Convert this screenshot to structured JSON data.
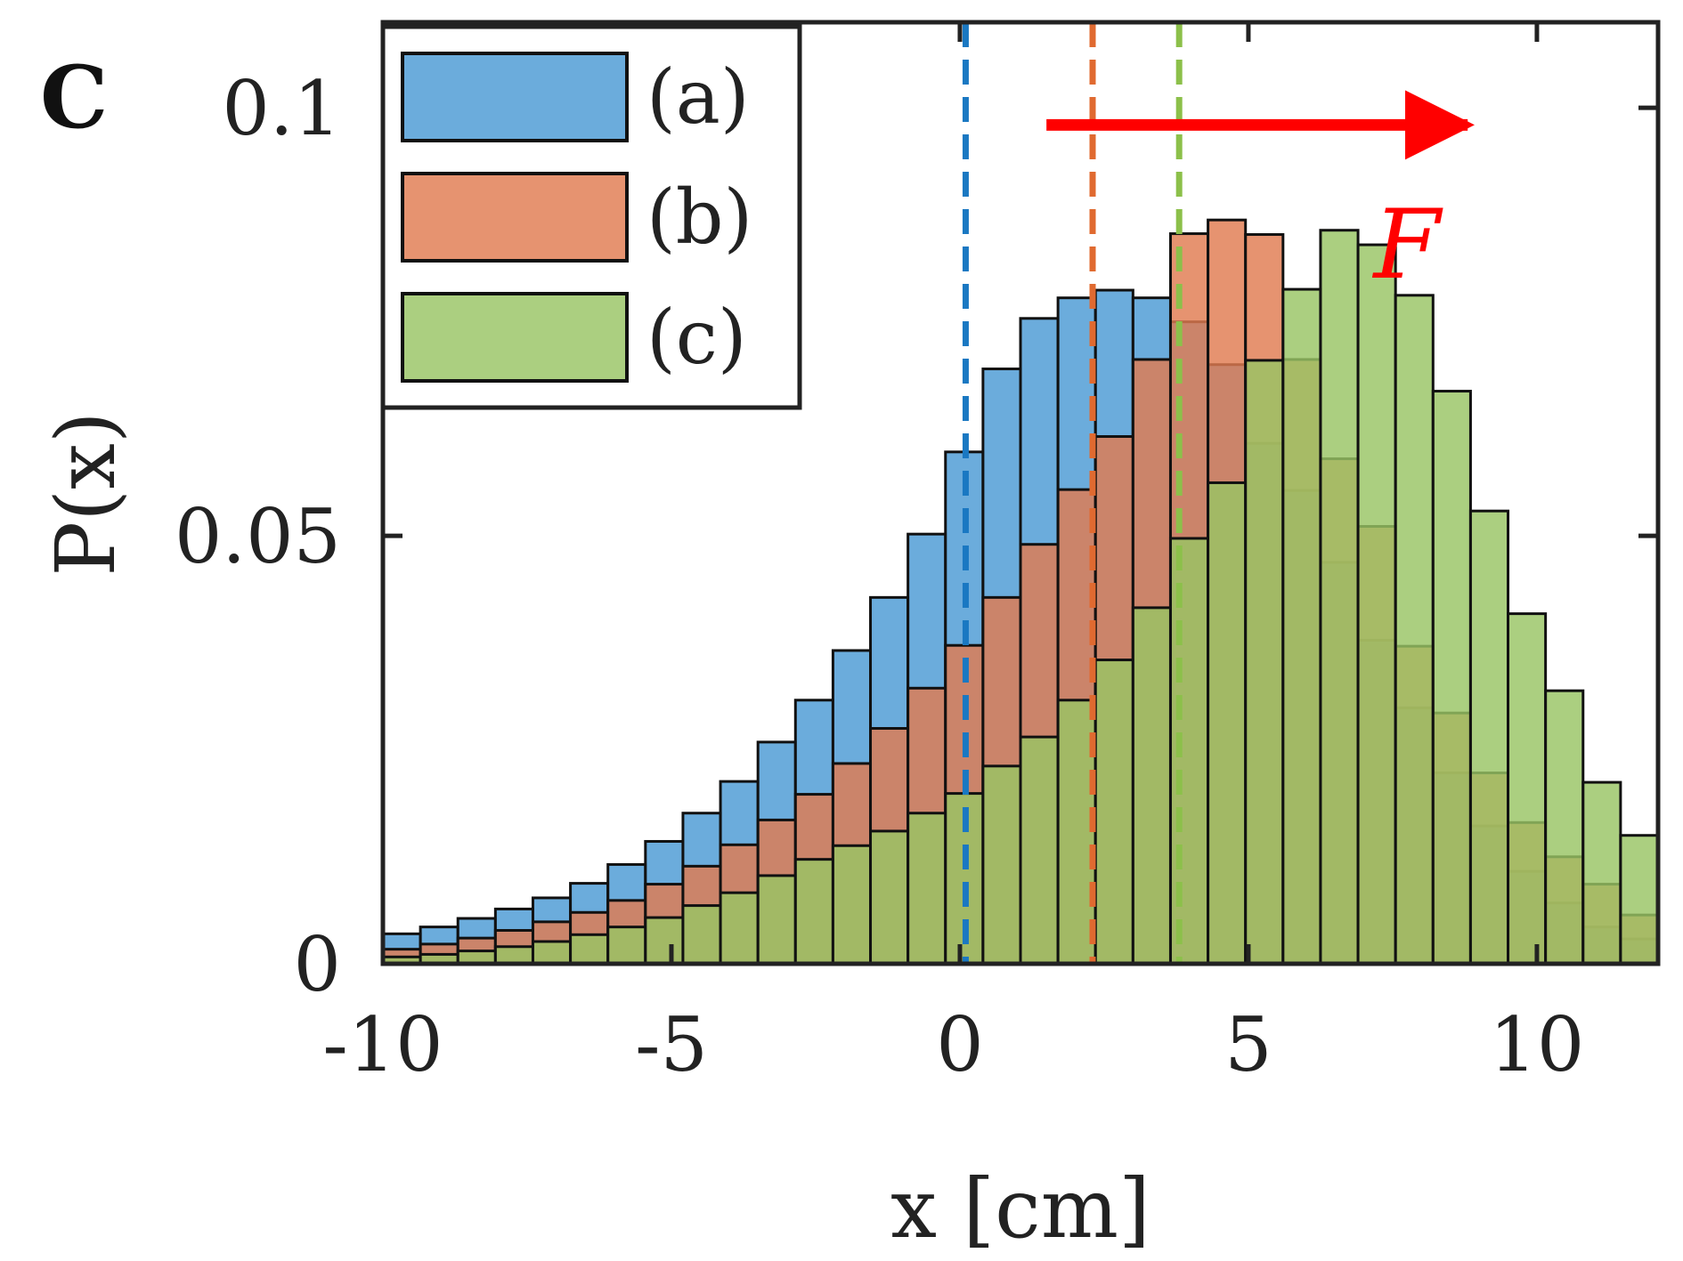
{
  "panel": {
    "letter": "C"
  },
  "chart_data": {
    "type": "bar",
    "title": "",
    "xlabel": "x [cm]",
    "ylabel": "P(x)",
    "xlim": [
      -10,
      12.1
    ],
    "ylim": [
      0,
      0.11
    ],
    "xticks": [
      -10,
      -5,
      0,
      5,
      10
    ],
    "xtick_labels": [
      "-10",
      "-5",
      "0",
      "5",
      "10"
    ],
    "yticks": [
      0,
      0.05,
      0.1
    ],
    "ytick_labels": [
      "0",
      "0.05",
      "0.1"
    ],
    "bin_width": 0.65,
    "bin_left_edges": [
      -10.0,
      -9.35,
      -8.7,
      -8.05,
      -7.4,
      -6.75,
      -6.1,
      -5.45,
      -4.8,
      -4.15,
      -3.5,
      -2.85,
      -2.2,
      -1.55,
      -0.9,
      -0.25,
      0.4,
      1.05,
      1.7,
      2.35,
      3.0,
      3.65,
      4.3,
      4.95,
      5.6,
      6.25,
      6.9,
      7.55,
      8.2,
      8.85,
      9.5,
      10.15,
      10.8,
      11.45
    ],
    "series": [
      {
        "name": "(a)",
        "color": "#4a9ad4",
        "values": [
          0.0035,
          0.0043,
          0.0053,
          0.0064,
          0.0077,
          0.0094,
          0.0116,
          0.0143,
          0.0176,
          0.0213,
          0.0259,
          0.0308,
          0.0366,
          0.0428,
          0.0502,
          0.0598,
          0.0695,
          0.0754,
          0.0778,
          0.0787,
          0.0778,
          0.075,
          0.07,
          0.0608,
          0.0553,
          0.0469,
          0.0378,
          0.0299,
          0.0223,
          0.0161,
          0.0108,
          0.0071,
          0.0043,
          0.0029
        ]
      },
      {
        "name": "(b)",
        "color": "#e07b50",
        "values": [
          0.0017,
          0.0023,
          0.003,
          0.0039,
          0.0049,
          0.006,
          0.0074,
          0.0093,
          0.0114,
          0.0139,
          0.0168,
          0.0198,
          0.0234,
          0.0275,
          0.0322,
          0.0372,
          0.0428,
          0.049,
          0.0554,
          0.0616,
          0.0706,
          0.0853,
          0.0869,
          0.0852,
          0.0706,
          0.059,
          0.0511,
          0.0371,
          0.0293,
          0.0223,
          0.0165,
          0.0125,
          0.0093,
          0.0057
        ]
      },
      {
        "name": "(c)",
        "color": "#98c464",
        "values": [
          0.0008,
          0.0011,
          0.0015,
          0.002,
          0.0026,
          0.0034,
          0.0043,
          0.0054,
          0.0068,
          0.0083,
          0.0103,
          0.0122,
          0.0138,
          0.0155,
          0.0176,
          0.0199,
          0.0231,
          0.0265,
          0.0308,
          0.0355,
          0.0416,
          0.0497,
          0.0562,
          0.0705,
          0.0788,
          0.0857,
          0.084,
          0.0781,
          0.0669,
          0.0529,
          0.0409,
          0.0319,
          0.0212,
          0.015
        ]
      }
    ],
    "vertical_lines": [
      {
        "series": "(a)",
        "x": 0.1,
        "color": "#1a78c2",
        "style": "dashed"
      },
      {
        "series": "(b)",
        "x": 2.3,
        "color": "#e06a30",
        "style": "dashed"
      },
      {
        "series": "(c)",
        "x": 3.8,
        "color": "#8cc04a",
        "style": "dashed"
      }
    ],
    "annotation": {
      "label": "F",
      "direction": "right",
      "color": "#ff0000",
      "x_from": 1.5,
      "x_to": 8.8,
      "y": 0.098
    },
    "legend": {
      "position": "top-left",
      "entries": [
        "(a)",
        "(b)",
        "(c)"
      ]
    }
  }
}
